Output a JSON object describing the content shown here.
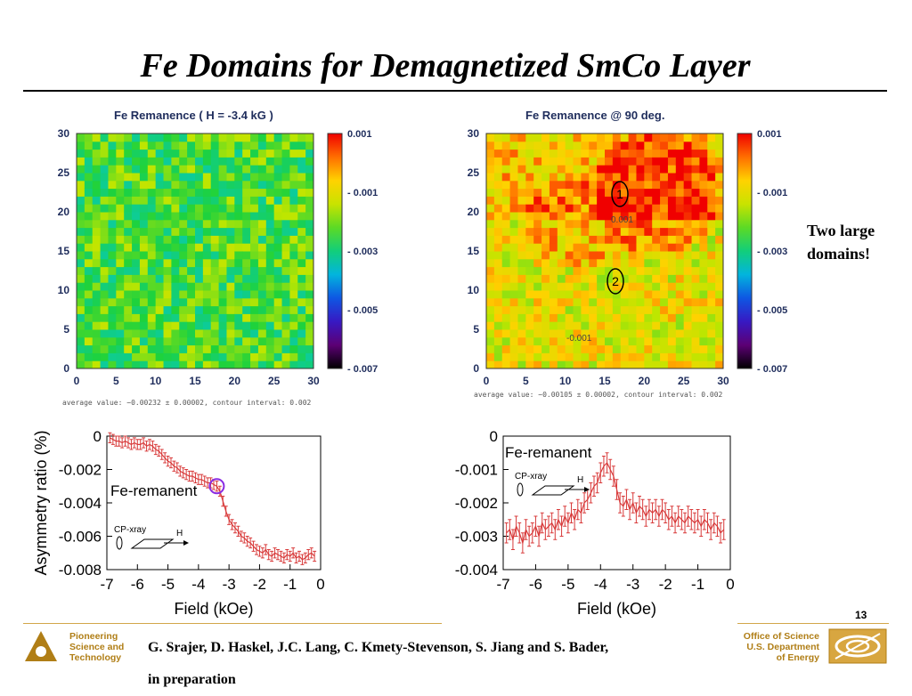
{
  "slide": {
    "title": "Fe Domains for Demagnetized SmCo Layer",
    "page_number": "13",
    "note_lines": [
      "Two large",
      "domains!"
    ],
    "citation_line1": "G. Srajer, D. Haskel, J.C. Lang, C. Kmety-Stevenson, S. Jiang and S. Bader,",
    "citation_line2": "in preparation",
    "left_logo_lines": [
      "Pioneering",
      "Science and",
      "Technology"
    ],
    "right_logo_lines": [
      "Office of Science",
      "U.S. Department",
      "of Energy"
    ],
    "accent_color": "#b07e16"
  },
  "chart_data": [
    {
      "type": "heatmap",
      "title": "Fe Remanence  ( H = -3.4 kG )",
      "x_ticks": [
        "0",
        "5",
        "10",
        "15",
        "20",
        "25",
        "30"
      ],
      "y_ticks": [
        "0",
        "5",
        "10",
        "15",
        "20",
        "25",
        "30"
      ],
      "xlim": [
        0,
        30
      ],
      "ylim": [
        0,
        30
      ],
      "colorbar_labels": [
        "0.001",
        "- 0.001",
        "- 0.003",
        "- 0.005",
        "- 0.007"
      ],
      "colorbar_range": [
        -0.007,
        0.001
      ],
      "caption": "average value: −0.00232 ± 0.00002, contour interval: 0.002",
      "seed": 7,
      "mean_value": -0.00232
    },
    {
      "type": "heatmap",
      "title": "Fe Remanence @ 90 deg.",
      "x_ticks": [
        "0",
        "5",
        "10",
        "15",
        "20",
        "25",
        "30"
      ],
      "y_ticks": [
        "0",
        "5",
        "10",
        "15",
        "20",
        "25",
        "30"
      ],
      "xlim": [
        0,
        30
      ],
      "ylim": [
        0,
        30
      ],
      "colorbar_labels": [
        "0.001",
        "- 0.001",
        "- 0.003",
        "- 0.005",
        "- 0.007"
      ],
      "colorbar_range": [
        -0.007,
        0.001
      ],
      "caption": "average value: −0.00105 ± 0.00002, contour interval: 0.002",
      "contour_labels": [
        "0.001",
        "-0.001"
      ],
      "region_markers": [
        "1",
        "2"
      ],
      "seed": 11,
      "mean_value": -0.00105
    },
    {
      "type": "line",
      "ylabel": "Asymmetry ratio (%)",
      "xlabel": "Field (kOe)",
      "xlim": [
        -7,
        0
      ],
      "ylim": [
        -0.008,
        0
      ],
      "x_ticks": [
        "-7",
        "-6",
        "-5",
        "-4",
        "-3",
        "-2",
        "-1",
        "0"
      ],
      "y_ticks": [
        "0",
        "-0.002",
        "-0.004",
        "-0.006",
        "-0.008"
      ],
      "legend": "Fe-remanent",
      "inset_labels": [
        "CP-xray",
        "H"
      ],
      "highlight_x": -3.4,
      "series": [
        {
          "x": [
            -6.9,
            -6.8,
            -6.7,
            -6.6,
            -6.5,
            -6.4,
            -6.3,
            -6.2,
            -6.1,
            -6.0,
            -5.9,
            -5.8,
            -5.7,
            -5.6,
            -5.5,
            -5.4,
            -5.3,
            -5.2,
            -5.1,
            -5.0,
            -4.9,
            -4.8,
            -4.7,
            -4.6,
            -4.5,
            -4.4,
            -4.3,
            -4.2,
            -4.1,
            -4.0,
            -3.9,
            -3.8,
            -3.7,
            -3.6,
            -3.5,
            -3.4,
            -3.3,
            -3.2,
            -3.1,
            -3.0,
            -2.9,
            -2.8,
            -2.7,
            -2.6,
            -2.5,
            -2.4,
            -2.3,
            -2.2,
            -2.1,
            -2.0,
            -1.9,
            -1.8,
            -1.7,
            -1.6,
            -1.5,
            -1.4,
            -1.3,
            -1.2,
            -1.1,
            -1.0,
            -0.9,
            -0.8,
            -0.7,
            -0.6,
            -0.5,
            -0.4,
            -0.3,
            -0.2
          ],
          "y": [
            -0.0001,
            -0.0002,
            -0.0003,
            -0.0003,
            -0.0004,
            -0.0003,
            -0.0004,
            -0.0005,
            -0.0004,
            -0.0005,
            -0.0005,
            -0.0004,
            -0.0006,
            -0.0005,
            -0.0006,
            -0.0008,
            -0.0009,
            -0.0011,
            -0.0013,
            -0.0015,
            -0.0016,
            -0.0018,
            -0.0019,
            -0.0021,
            -0.0022,
            -0.0023,
            -0.0024,
            -0.0024,
            -0.0025,
            -0.0026,
            -0.0026,
            -0.0027,
            -0.0028,
            -0.0028,
            -0.0029,
            -0.003,
            -0.0033,
            -0.0039,
            -0.0045,
            -0.005,
            -0.0053,
            -0.0055,
            -0.0057,
            -0.006,
            -0.0061,
            -0.0063,
            -0.0064,
            -0.0066,
            -0.0068,
            -0.0069,
            -0.007,
            -0.0068,
            -0.0071,
            -0.0072,
            -0.007,
            -0.0071,
            -0.0072,
            -0.0073,
            -0.0071,
            -0.0072,
            -0.007,
            -0.0073,
            -0.0072,
            -0.0074,
            -0.0073,
            -0.0071,
            -0.007,
            -0.0072
          ],
          "err": 0.0003,
          "color": "#d83a3a"
        }
      ]
    },
    {
      "type": "line",
      "xlabel": "Field (kOe)",
      "xlim": [
        -7,
        0
      ],
      "ylim": [
        -0.004,
        0
      ],
      "x_ticks": [
        "-7",
        "-6",
        "-5",
        "-4",
        "-3",
        "-2",
        "-1",
        "0"
      ],
      "y_ticks": [
        "0",
        "-0.001",
        "-0.002",
        "-0.003",
        "-0.004"
      ],
      "legend": "Fe-remanent",
      "inset_labels": [
        "CP-xray",
        "H"
      ],
      "series": [
        {
          "x": [
            -6.9,
            -6.8,
            -6.7,
            -6.6,
            -6.5,
            -6.4,
            -6.3,
            -6.2,
            -6.1,
            -6.0,
            -5.9,
            -5.8,
            -5.7,
            -5.6,
            -5.5,
            -5.4,
            -5.3,
            -5.2,
            -5.1,
            -5.0,
            -4.9,
            -4.8,
            -4.7,
            -4.6,
            -4.5,
            -4.4,
            -4.3,
            -4.2,
            -4.1,
            -4.0,
            -3.9,
            -3.8,
            -3.7,
            -3.6,
            -3.5,
            -3.4,
            -3.3,
            -3.2,
            -3.1,
            -3.0,
            -2.9,
            -2.8,
            -2.7,
            -2.6,
            -2.5,
            -2.4,
            -2.3,
            -2.2,
            -2.1,
            -2.0,
            -1.9,
            -1.8,
            -1.7,
            -1.6,
            -1.5,
            -1.4,
            -1.3,
            -1.2,
            -1.1,
            -1.0,
            -0.9,
            -0.8,
            -0.7,
            -0.6,
            -0.5,
            -0.4,
            -0.3,
            -0.2
          ],
          "y": [
            -0.0029,
            -0.0028,
            -0.0031,
            -0.0027,
            -0.0029,
            -0.0032,
            -0.0028,
            -0.003,
            -0.0029,
            -0.0027,
            -0.003,
            -0.0026,
            -0.0028,
            -0.0027,
            -0.0026,
            -0.0028,
            -0.0025,
            -0.0027,
            -0.0024,
            -0.0026,
            -0.0023,
            -0.0025,
            -0.0022,
            -0.0023,
            -0.002,
            -0.0019,
            -0.0017,
            -0.0015,
            -0.0014,
            -0.0011,
            -0.0009,
            -0.0008,
            -0.001,
            -0.0012,
            -0.0016,
            -0.002,
            -0.0021,
            -0.0019,
            -0.0022,
            -0.002,
            -0.0023,
            -0.0021,
            -0.0022,
            -0.0024,
            -0.0022,
            -0.0023,
            -0.0022,
            -0.0024,
            -0.0022,
            -0.0023,
            -0.0025,
            -0.0024,
            -0.0026,
            -0.0024,
            -0.0025,
            -0.0026,
            -0.0024,
            -0.0025,
            -0.0026,
            -0.0025,
            -0.0027,
            -0.0025,
            -0.0026,
            -0.0028,
            -0.0026,
            -0.0027,
            -0.0029,
            -0.0028
          ],
          "err": 0.0003,
          "color": "#d83a3a"
        }
      ]
    }
  ]
}
